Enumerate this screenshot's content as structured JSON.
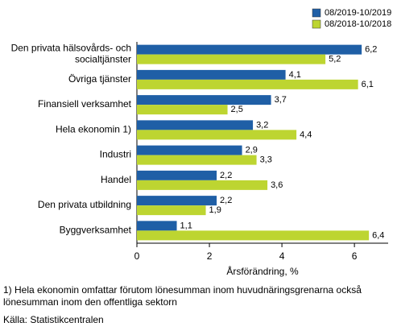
{
  "chart_data": {
    "type": "barh",
    "categories": [
      "Den privata hälsovårds- och\nsocialtjänster",
      "Övriga tjänster",
      "Finansiell verksamhet",
      "Hela ekonomin 1)",
      "Industri",
      "Handel",
      "Den privata utbildning",
      "Byggverksamhet"
    ],
    "series": [
      {
        "name": "08/2019-10/2019",
        "color": "#1f5fa6",
        "values": [
          6.2,
          4.1,
          3.7,
          3.2,
          2.9,
          2.2,
          2.2,
          1.1
        ],
        "value_labels": [
          "6,2",
          "4,1",
          "3,7",
          "3,2",
          "2,9",
          "2,2",
          "2,2",
          "1,1"
        ]
      },
      {
        "name": "08/2018-10/2018",
        "color": "#bdd531",
        "values": [
          5.2,
          6.1,
          2.5,
          4.4,
          3.3,
          3.6,
          1.9,
          6.4
        ],
        "value_labels": [
          "5,2",
          "6,1",
          "2,5",
          "4,4",
          "3,3",
          "3,6",
          "1,9",
          "6,4"
        ]
      }
    ],
    "xlabel": "Årsförändring, %",
    "xlim": [
      0,
      6.93
    ],
    "xticks": [
      0,
      2,
      4,
      6
    ],
    "legend": "top-right",
    "notes": [
      "1) Hela ekonomin omfattar förutom lönesumman inom huvudnäringsgrenarna också lönesumman inom den offentliga sektorn",
      "Källa: Statistikcentralen"
    ]
  }
}
